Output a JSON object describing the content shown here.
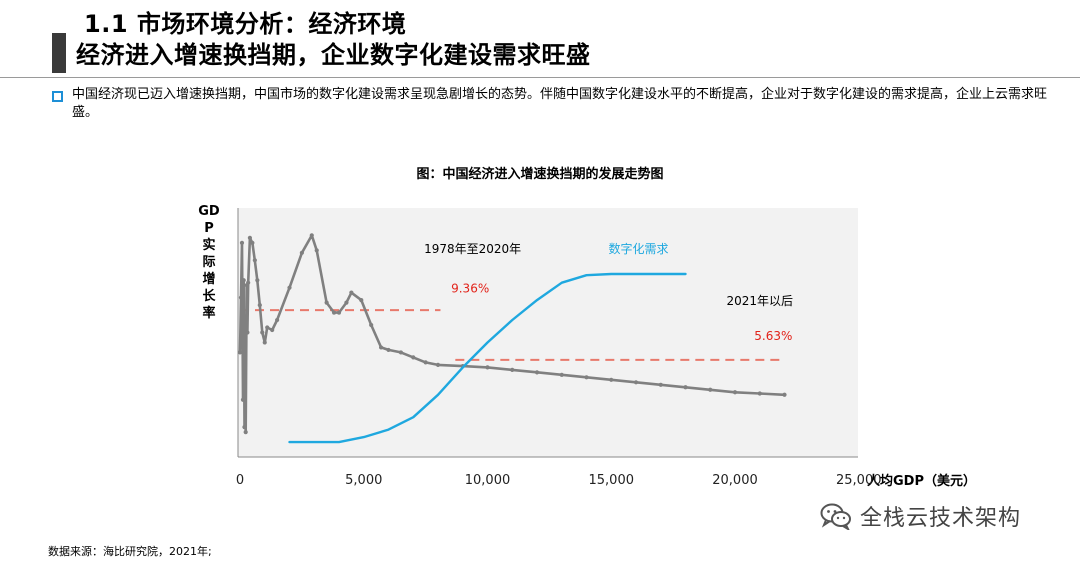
{
  "header": {
    "title_line1": "1.1 市场环境分析：经济环境",
    "title_line2": "经济进入增速换挡期，企业数字化建设需求旺盛"
  },
  "intro": {
    "bullet_icon": "square-bullet-icon",
    "text": "中国经济现已迈入增速换挡期，中国市场的数字化建设需求呈现急剧增长的态势。伴随中国数字化建设水平的不断提高，企业对于数字化建设的需求提高，企业上云需求旺盛。"
  },
  "footer": {
    "source": "数据来源：海比研究院，2021年;",
    "wechat_icon": "wechat-icon",
    "wechat_label": "全栈云技术架构"
  },
  "chart_data": {
    "type": "line",
    "title": "图：中国经济进入增速换挡期的发展走势图",
    "xlabel": "人均GDP（美元）",
    "ylabel": "GDP实际增长率",
    "xlim": [
      0,
      25000
    ],
    "ylim": [
      0,
      10
    ],
    "x_ticks": [
      0,
      5000,
      10000,
      15000,
      20000,
      25000
    ],
    "x_tick_labels": [
      "0",
      "5,000",
      "10,000",
      "15,000",
      "20,000",
      "25,000"
    ],
    "grid": false,
    "annotations": [
      {
        "text": "1978年至2020年",
        "x": 9400,
        "y": 8.2,
        "color": "#000000"
      },
      {
        "text": "数字化需求",
        "x": 16100,
        "y": 8.2,
        "color": "#1fa8df"
      },
      {
        "text": "9.36%",
        "x": 9300,
        "y": 6.6,
        "color": "#e2231a"
      },
      {
        "text": "2021年以后",
        "x": 21000,
        "y": 6.1,
        "color": "#000000"
      },
      {
        "text": "5.63%",
        "x": 21550,
        "y": 4.7,
        "color": "#e2231a"
      }
    ],
    "reference_lines": [
      {
        "label": "9.36%",
        "y": 5.9,
        "x_start": 0,
        "x_end": 8100,
        "color": "#e8796b",
        "dash": true
      },
      {
        "label": "5.63%",
        "y": 3.9,
        "x_start": 8700,
        "x_end": 22000,
        "color": "#e8796b",
        "dash": true
      }
    ],
    "series": [
      {
        "color": "#808080",
        "marker": "dot",
        "x": [
          0,
          40,
          80,
          120,
          150,
          180,
          200,
          230,
          270,
          300,
          330,
          400,
          500,
          600,
          700,
          800,
          900,
          1000,
          1100,
          1300,
          1500,
          2000,
          2500,
          2900,
          3100,
          3500,
          3800,
          4000,
          4300,
          4500,
          4900,
          5300,
          5700,
          6000,
          6500,
          7000,
          7500,
          8000,
          9000,
          10000,
          11000,
          12000,
          13000,
          14000,
          15000,
          16000,
          17000,
          18000,
          19000,
          20000,
          21000,
          22000
        ],
        "y": [
          4.2,
          6.4,
          8.6,
          2.3,
          7.1,
          1.2,
          5.4,
          1.0,
          6.9,
          5.0,
          7.0,
          8.8,
          8.6,
          7.9,
          7.1,
          6.1,
          5.0,
          4.6,
          5.2,
          5.1,
          5.5,
          6.8,
          8.2,
          8.9,
          8.3,
          6.2,
          5.8,
          5.8,
          6.2,
          6.6,
          6.3,
          5.3,
          4.4,
          4.3,
          4.2,
          4.0,
          3.8,
          3.7,
          3.65,
          3.6,
          3.5,
          3.4,
          3.3,
          3.2,
          3.1,
          3.0,
          2.9,
          2.8,
          2.7,
          2.6,
          2.55,
          2.5
        ]
      },
      {
        "name": "数字化需求",
        "color": "#1fa8df",
        "marker": "none",
        "x": [
          2000,
          3000,
          4000,
          5000,
          6000,
          7000,
          8000,
          9000,
          10000,
          11000,
          12000,
          13000,
          14000,
          15000,
          16000,
          17000,
          18000
        ],
        "y": [
          0.6,
          0.6,
          0.6,
          0.8,
          1.1,
          1.6,
          2.5,
          3.6,
          4.6,
          5.5,
          6.3,
          7.0,
          7.3,
          7.35,
          7.35,
          7.35,
          7.35
        ]
      }
    ]
  }
}
